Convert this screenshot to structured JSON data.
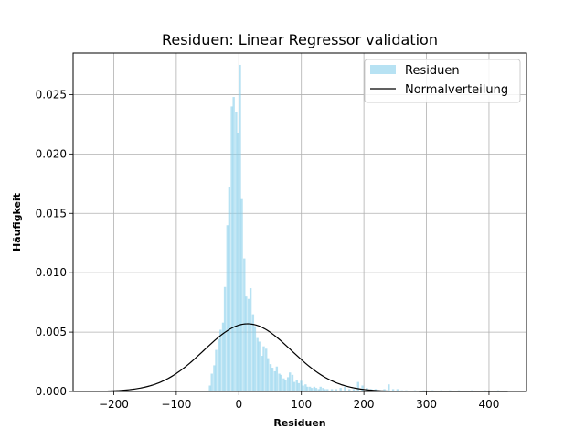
{
  "chart_data": {
    "type": "bar",
    "title": "Residuen: Linear Regressor validation",
    "xlabel": "Residuen",
    "ylabel": "Häufigkeit",
    "xlim": [
      -265,
      460
    ],
    "ylim": [
      0,
      0.0285
    ],
    "xticks": [
      -200,
      -100,
      0,
      100,
      200,
      300,
      400
    ],
    "xtick_labels": [
      "−200",
      "−100",
      "0",
      "100",
      "200",
      "300",
      "400"
    ],
    "yticks": [
      0,
      0.005,
      0.01,
      0.015,
      0.02,
      0.025
    ],
    "ytick_labels": [
      "0.000",
      "0.005",
      "0.010",
      "0.015",
      "0.020",
      "0.025"
    ],
    "grid": true,
    "legend_position": "top-right",
    "series": [
      {
        "name": "Residuen",
        "kind": "histogram",
        "color": "#87CEEB",
        "bin_width": 3.5,
        "bins": [
          [
            -48,
            0.0005
          ],
          [
            -45,
            0.0015
          ],
          [
            -41,
            0.0022
          ],
          [
            -38,
            0.0035
          ],
          [
            -34,
            0.0044
          ],
          [
            -31,
            0.0052
          ],
          [
            -27,
            0.0058
          ],
          [
            -24,
            0.0088
          ],
          [
            -20,
            0.014
          ],
          [
            -17,
            0.0172
          ],
          [
            -13,
            0.024
          ],
          [
            -10,
            0.0248
          ],
          [
            -6,
            0.0235
          ],
          [
            -3,
            0.0218
          ],
          [
            0,
            0.0275
          ],
          [
            3,
            0.0162
          ],
          [
            7,
            0.0112
          ],
          [
            10,
            0.008
          ],
          [
            14,
            0.0078
          ],
          [
            17,
            0.0087
          ],
          [
            21,
            0.0065
          ],
          [
            24,
            0.0055
          ],
          [
            28,
            0.0045
          ],
          [
            31,
            0.0042
          ],
          [
            35,
            0.003
          ],
          [
            38,
            0.0038
          ],
          [
            42,
            0.0036
          ],
          [
            45,
            0.0028
          ],
          [
            49,
            0.0023
          ],
          [
            52,
            0.002
          ],
          [
            56,
            0.0017
          ],
          [
            59,
            0.0021
          ],
          [
            63,
            0.0015
          ],
          [
            66,
            0.0014
          ],
          [
            70,
            0.0011
          ],
          [
            73,
            0.001
          ],
          [
            77,
            0.0012
          ],
          [
            80,
            0.0016
          ],
          [
            84,
            0.0014
          ],
          [
            87,
            0.0008
          ],
          [
            91,
            0.001
          ],
          [
            94,
            0.0007
          ],
          [
            98,
            0.0009
          ],
          [
            101,
            0.0005
          ],
          [
            105,
            0.0006
          ],
          [
            108,
            0.0004
          ],
          [
            112,
            0.0004
          ],
          [
            115,
            0.0003
          ],
          [
            119,
            0.0004
          ],
          [
            122,
            0.0003
          ],
          [
            126,
            0.0002
          ],
          [
            129,
            0.0004
          ],
          [
            133,
            0.0003
          ],
          [
            136,
            0.0002
          ],
          [
            140,
            0.0002
          ],
          [
            147,
            0.0002
          ],
          [
            154,
            0.0002
          ],
          [
            161,
            0.0003
          ],
          [
            168,
            0.0004
          ],
          [
            175,
            0.0002
          ],
          [
            182,
            0.0002
          ],
          [
            189,
            0.0008
          ],
          [
            196,
            0.0005
          ],
          [
            203,
            0.0003
          ],
          [
            210,
            0.0002
          ],
          [
            217,
            0.0002
          ],
          [
            224,
            0.0001
          ],
          [
            231,
            0.0002
          ],
          [
            238,
            0.0006
          ],
          [
            245,
            0.0002
          ],
          [
            252,
            0.0002
          ],
          [
            259,
            0.0001
          ],
          [
            266,
            0.0001
          ],
          [
            280,
            0.0001
          ],
          [
            294,
            0.0001
          ],
          [
            308,
            0.0001
          ],
          [
            322,
            0.0001
          ],
          [
            336,
            0.0001
          ],
          [
            350,
            0.0001
          ],
          [
            371,
            0.0001
          ],
          [
            392,
            0.0001
          ],
          [
            413,
            0.0001
          ]
        ]
      },
      {
        "name": "Normalverteilung",
        "kind": "line",
        "color": "#000000",
        "mean": 14,
        "std": 70,
        "x_range": [
          -230,
          430
        ]
      }
    ]
  }
}
